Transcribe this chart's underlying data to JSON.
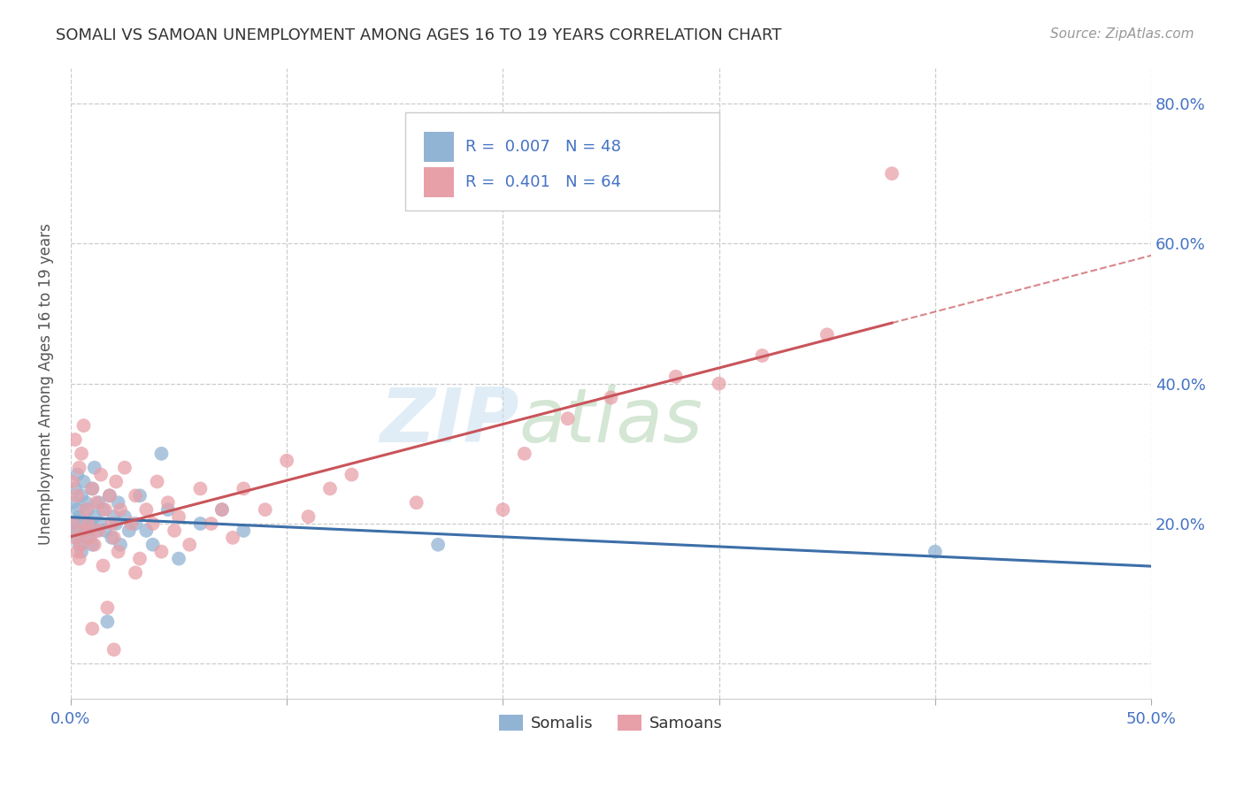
{
  "title": "SOMALI VS SAMOAN UNEMPLOYMENT AMONG AGES 16 TO 19 YEARS CORRELATION CHART",
  "source": "Source: ZipAtlas.com",
  "ylabel": "Unemployment Among Ages 16 to 19 years",
  "xlim": [
    0.0,
    0.5
  ],
  "ylim": [
    -0.05,
    0.85
  ],
  "xticks": [
    0.0,
    0.1,
    0.2,
    0.3,
    0.4,
    0.5
  ],
  "yticks": [
    0.0,
    0.2,
    0.4,
    0.6,
    0.8
  ],
  "ytick_labels": [
    "",
    "20.0%",
    "40.0%",
    "60.0%",
    "80.0%"
  ],
  "xtick_labels": [
    "0.0%",
    "",
    "",
    "",
    "",
    "50.0%"
  ],
  "somali_color": "#92b4d4",
  "samoan_color": "#e8a0a8",
  "somali_line_color": "#3d6fa8",
  "samoan_line_color": "#c9545a",
  "somali_R": 0.007,
  "somali_N": 48,
  "samoan_R": 0.401,
  "samoan_N": 64,
  "somali_scatter_x": [
    0.001,
    0.001,
    0.002,
    0.002,
    0.003,
    0.003,
    0.003,
    0.004,
    0.004,
    0.005,
    0.005,
    0.006,
    0.006,
    0.007,
    0.007,
    0.008,
    0.008,
    0.009,
    0.01,
    0.01,
    0.011,
    0.011,
    0.012,
    0.013,
    0.014,
    0.015,
    0.016,
    0.017,
    0.018,
    0.019,
    0.02,
    0.021,
    0.022,
    0.023,
    0.025,
    0.027,
    0.03,
    0.032,
    0.035,
    0.038,
    0.042,
    0.045,
    0.05,
    0.06,
    0.07,
    0.08,
    0.17,
    0.4
  ],
  "somali_scatter_y": [
    0.2,
    0.23,
    0.19,
    0.25,
    0.18,
    0.22,
    0.27,
    0.17,
    0.21,
    0.16,
    0.24,
    0.2,
    0.26,
    0.19,
    0.23,
    0.18,
    0.22,
    0.2,
    0.17,
    0.25,
    0.21,
    0.28,
    0.19,
    0.23,
    0.2,
    0.22,
    0.19,
    0.06,
    0.24,
    0.18,
    0.21,
    0.2,
    0.23,
    0.17,
    0.21,
    0.19,
    0.2,
    0.24,
    0.19,
    0.17,
    0.3,
    0.22,
    0.15,
    0.2,
    0.22,
    0.19,
    0.17,
    0.16
  ],
  "samoan_scatter_x": [
    0.001,
    0.001,
    0.002,
    0.002,
    0.003,
    0.003,
    0.004,
    0.004,
    0.005,
    0.005,
    0.006,
    0.006,
    0.007,
    0.008,
    0.009,
    0.01,
    0.011,
    0.012,
    0.013,
    0.014,
    0.015,
    0.016,
    0.017,
    0.018,
    0.019,
    0.02,
    0.021,
    0.022,
    0.023,
    0.025,
    0.028,
    0.03,
    0.032,
    0.035,
    0.038,
    0.04,
    0.042,
    0.045,
    0.048,
    0.05,
    0.055,
    0.06,
    0.065,
    0.07,
    0.075,
    0.08,
    0.09,
    0.1,
    0.11,
    0.12,
    0.13,
    0.16,
    0.2,
    0.21,
    0.23,
    0.25,
    0.28,
    0.3,
    0.32,
    0.35,
    0.38,
    0.01,
    0.02,
    0.03
  ],
  "samoan_scatter_y": [
    0.2,
    0.26,
    0.18,
    0.32,
    0.16,
    0.24,
    0.15,
    0.28,
    0.17,
    0.3,
    0.19,
    0.34,
    0.22,
    0.2,
    0.18,
    0.25,
    0.17,
    0.23,
    0.19,
    0.27,
    0.14,
    0.22,
    0.08,
    0.24,
    0.2,
    0.18,
    0.26,
    0.16,
    0.22,
    0.28,
    0.2,
    0.24,
    0.15,
    0.22,
    0.2,
    0.26,
    0.16,
    0.23,
    0.19,
    0.21,
    0.17,
    0.25,
    0.2,
    0.22,
    0.18,
    0.25,
    0.22,
    0.29,
    0.21,
    0.25,
    0.27,
    0.23,
    0.22,
    0.3,
    0.35,
    0.38,
    0.41,
    0.4,
    0.44,
    0.47,
    0.7,
    0.05,
    0.02,
    0.13
  ],
  "watermark_zip": "ZIP",
  "watermark_atlas": "atlas",
  "background_color": "#ffffff",
  "grid_color": "#cccccc",
  "title_color": "#333333",
  "tick_color": "#4472c4",
  "source_color": "#999999"
}
